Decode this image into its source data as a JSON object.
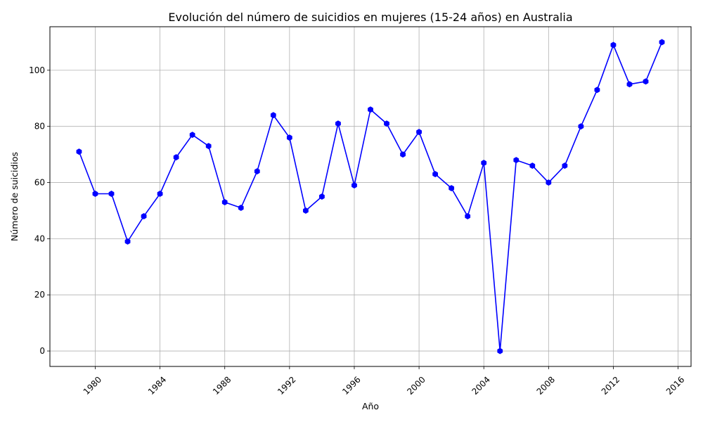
{
  "chart_data": {
    "type": "line",
    "title": "Evolución del número de suicidios en mujeres (15-24 años) en Australia",
    "xlabel": "Año",
    "ylabel": "Número de suicidios",
    "x": [
      1979,
      1980,
      1981,
      1982,
      1983,
      1984,
      1985,
      1986,
      1987,
      1988,
      1989,
      1990,
      1991,
      1992,
      1993,
      1994,
      1995,
      1996,
      1997,
      1998,
      1999,
      2000,
      2001,
      2002,
      2003,
      2004,
      2005,
      2006,
      2007,
      2008,
      2009,
      2010,
      2011,
      2012,
      2013,
      2014,
      2015
    ],
    "series": [
      {
        "values": [
          71,
          56,
          56,
          39,
          48,
          56,
          69,
          77,
          73,
          53,
          51,
          64,
          84,
          76,
          50,
          55,
          81,
          59,
          86,
          81,
          70,
          78,
          63,
          58,
          48,
          67,
          0,
          68,
          66,
          60,
          66,
          80,
          93,
          109,
          95,
          96,
          110
        ],
        "color": "#0000ff"
      }
    ],
    "xticks": [
      "1980",
      "1984",
      "1988",
      "1992",
      "1996",
      "2000",
      "2004",
      "2008",
      "2012",
      "2016"
    ],
    "yticks": [
      "0",
      "20",
      "40",
      "60",
      "80",
      "100"
    ],
    "xlim": [
      1977.2,
      2016.8
    ],
    "ylim": [
      -5.5,
      115.5
    ],
    "grid": true,
    "marker": "hexagon",
    "xtick_rotation": 45
  }
}
